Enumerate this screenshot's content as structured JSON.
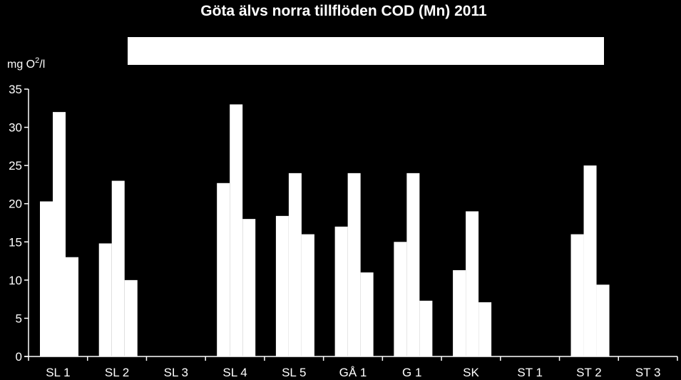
{
  "chart_data": {
    "type": "bar",
    "title": "Göta älvs norra tillflöden COD (Mn) 2011",
    "ylabel": {
      "prefix": "mg O",
      "superscript": "2",
      "suffix": "/l"
    },
    "xlabel": "",
    "ylim": [
      0,
      35
    ],
    "yticks": [
      0,
      5,
      10,
      15,
      20,
      25,
      30,
      35
    ],
    "grid": false,
    "legend": "top-center",
    "legend_entries": [],
    "categories": [
      "SL 1",
      "SL 2",
      "SL 3",
      "SL 4",
      "SL 5",
      "GÅ 1",
      "G 1",
      "SK",
      "ST 1",
      "ST 2",
      "ST 3"
    ],
    "series": [
      {
        "values": [
          20.3,
          14.8,
          null,
          22.7,
          18.4,
          17.0,
          15.0,
          11.3,
          null,
          16.0,
          null
        ],
        "color": "#ffffff"
      },
      {
        "values": [
          32.0,
          23.0,
          null,
          33.0,
          24.0,
          24.0,
          24.0,
          19.0,
          null,
          25.0,
          null
        ],
        "color": "#ffffff"
      },
      {
        "values": [
          13.0,
          10.0,
          null,
          18.0,
          16.0,
          11.0,
          7.3,
          7.1,
          null,
          9.4,
          null
        ],
        "color": "#ffffff"
      }
    ]
  },
  "colors": {
    "background": "#000000",
    "bar_fill": "#ffffff",
    "axis": "#ffffff",
    "text": "#ffffff"
  }
}
